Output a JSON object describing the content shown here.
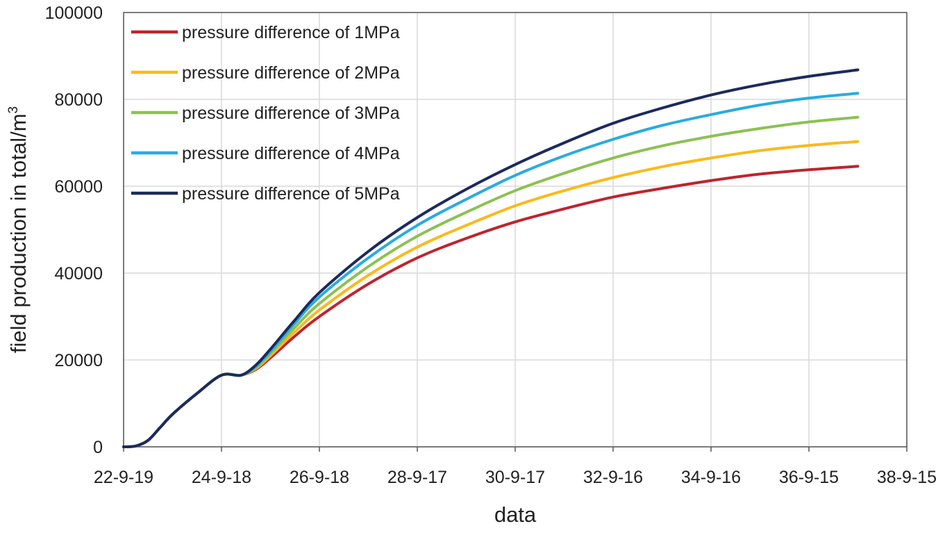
{
  "chart_data": {
    "type": "line",
    "title": "",
    "xlabel": "data",
    "ylabel": "field production in total/m",
    "ylabel_superscript": "3",
    "ylim": [
      0,
      100000
    ],
    "yticks": [
      "0",
      "20000",
      "40000",
      "60000",
      "80000",
      "100000"
    ],
    "ytick_values": [
      0,
      20000,
      40000,
      60000,
      80000,
      100000
    ],
    "xticks": [
      "22-9-19",
      "24-9-18",
      "26-9-18",
      "28-9-17",
      "30-9-17",
      "32-9-16",
      "34-9-16",
      "36-9-15",
      "38-9-15"
    ],
    "xlim": [
      0,
      16
    ],
    "x_unit": "years since 22-9-19",
    "grid": true,
    "legend_position": "top-left",
    "x": [
      0,
      0.25,
      0.5,
      0.75,
      1,
      1.5,
      2,
      2.4,
      2.7,
      3,
      3.5,
      4,
      5,
      6,
      7,
      8,
      9,
      10,
      11,
      12,
      13,
      14,
      15
    ],
    "series": [
      {
        "name": "pressure difference of 1MPa",
        "color": "#c0232e",
        "values": [
          0,
          200,
          1500,
          4500,
          7500,
          12300,
          16500,
          16500,
          17800,
          20500,
          25500,
          30000,
          37500,
          43500,
          48000,
          51800,
          54800,
          57500,
          59500,
          61300,
          62800,
          63800,
          64600
        ]
      },
      {
        "name": "pressure difference of 2MPa",
        "color": "#fbb91a",
        "values": [
          0,
          200,
          1500,
          4500,
          7500,
          12300,
          16500,
          16500,
          18000,
          21000,
          26500,
          31500,
          39500,
          46000,
          51000,
          55500,
          59000,
          62000,
          64500,
          66500,
          68200,
          69400,
          70300
        ]
      },
      {
        "name": "pressure difference of 3MPa",
        "color": "#8cc152",
        "values": [
          0,
          200,
          1500,
          4500,
          7500,
          12300,
          16500,
          16500,
          18200,
          21500,
          27500,
          33000,
          41500,
          48500,
          54000,
          59000,
          63000,
          66500,
          69300,
          71500,
          73300,
          74800,
          75900
        ]
      },
      {
        "name": "pressure difference of 4MPa",
        "color": "#29abe2",
        "values": [
          0,
          200,
          1500,
          4500,
          7500,
          12300,
          16500,
          16500,
          18500,
          22000,
          28500,
          34500,
          43500,
          51000,
          57000,
          62500,
          67000,
          70800,
          74000,
          76500,
          78700,
          80300,
          81400
        ]
      },
      {
        "name": "pressure difference of 5MPa",
        "color": "#1c2a5c",
        "values": [
          0,
          200,
          1500,
          4500,
          7500,
          12300,
          16500,
          16500,
          18800,
          22500,
          29200,
          35500,
          45000,
          52800,
          59300,
          65000,
          70000,
          74500,
          78000,
          81000,
          83400,
          85300,
          86800
        ]
      }
    ]
  }
}
